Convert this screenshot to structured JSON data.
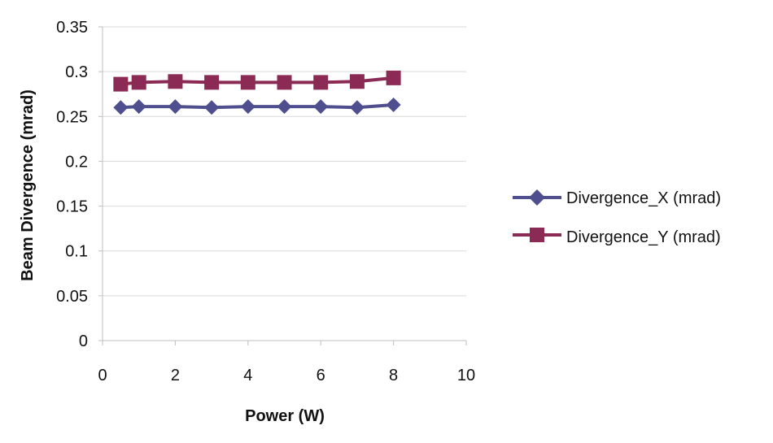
{
  "chart_data": {
    "type": "line",
    "title": "",
    "xlabel": "Power (W)",
    "ylabel": "Beam Divergence (mrad)",
    "xlim": [
      0,
      10
    ],
    "ylim": [
      0,
      0.35
    ],
    "x_ticks": [
      "0",
      "2",
      "4",
      "6",
      "8",
      "10"
    ],
    "y_ticks": [
      "0",
      "0.05",
      "0.1",
      "0.15",
      "0.2",
      "0.25",
      "0.3",
      "0.35"
    ],
    "grid": true,
    "legend_position": "right",
    "series": [
      {
        "name": "Divergence_X (mrad)",
        "marker": "diamond",
        "color": "#4F4F8F",
        "x": [
          0.5,
          1,
          2,
          3,
          4,
          5,
          6,
          7,
          8
        ],
        "y": [
          0.26,
          0.261,
          0.261,
          0.26,
          0.261,
          0.261,
          0.261,
          0.26,
          0.263
        ]
      },
      {
        "name": "Divergence_Y (mrad)",
        "marker": "square",
        "color": "#8B2A55",
        "x": [
          0.5,
          1,
          2,
          3,
          4,
          5,
          6,
          7,
          8
        ],
        "y": [
          0.286,
          0.288,
          0.289,
          0.288,
          0.288,
          0.288,
          0.288,
          0.289,
          0.293
        ]
      }
    ]
  }
}
